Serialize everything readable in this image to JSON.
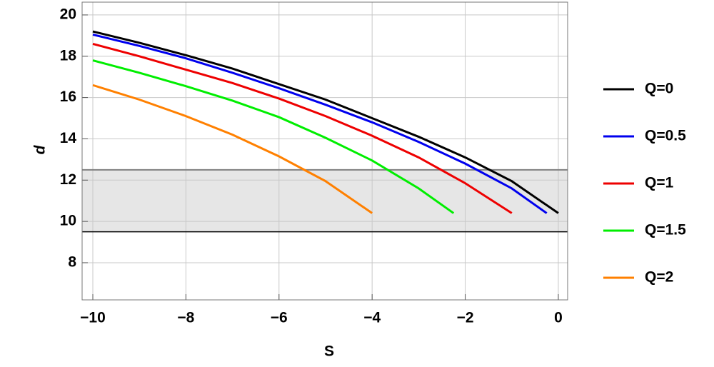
{
  "chart_data": {
    "type": "line",
    "xlabel": "S",
    "ylabel": "d",
    "xlim": [
      -10.23,
      0.2
    ],
    "ylim": [
      6.2,
      20.62
    ],
    "xticks": [
      {
        "value": -10,
        "label": "−10"
      },
      {
        "value": -8,
        "label": "−8"
      },
      {
        "value": -6,
        "label": "−6"
      },
      {
        "value": -4,
        "label": "−4"
      },
      {
        "value": -2,
        "label": "−2"
      },
      0
    ],
    "yticks": [
      8,
      10,
      12,
      14,
      16,
      18,
      20
    ],
    "grid": true,
    "legend": "right",
    "shaded_band": [
      9.5,
      12.5
    ],
    "series": [
      {
        "name": "Q=0",
        "color": "#000000",
        "x": [
          -10,
          -9,
          -8,
          -7,
          -6,
          -5,
          -4,
          -3,
          -2,
          -1,
          0
        ],
        "values": [
          19.2,
          18.65,
          18.05,
          17.4,
          16.65,
          15.9,
          15.0,
          14.1,
          13.1,
          11.95,
          10.4
        ]
      },
      {
        "name": "Q=0.5",
        "color": "#0000ee",
        "x": [
          -10,
          -9,
          -8,
          -7,
          -6,
          -5,
          -4,
          -3,
          -2,
          -1,
          -0.25
        ],
        "values": [
          19.05,
          18.5,
          17.9,
          17.2,
          16.45,
          15.65,
          14.8,
          13.85,
          12.8,
          11.6,
          10.4
        ]
      },
      {
        "name": "Q=1",
        "color": "#ee0000",
        "x": [
          -10,
          -9,
          -8,
          -7,
          -6,
          -5,
          -4,
          -3,
          -2,
          -1
        ],
        "values": [
          18.6,
          18.0,
          17.35,
          16.7,
          15.95,
          15.1,
          14.15,
          13.1,
          11.85,
          10.4
        ]
      },
      {
        "name": "Q=1.5",
        "color": "#00ee00",
        "x": [
          -10,
          -9,
          -8,
          -7,
          -6,
          -5,
          -4,
          -3,
          -2.25
        ],
        "values": [
          17.8,
          17.2,
          16.55,
          15.85,
          15.05,
          14.05,
          12.95,
          11.6,
          10.4
        ]
      },
      {
        "name": "Q=2",
        "color": "#ff8000",
        "x": [
          -10,
          -9,
          -8,
          -7,
          -6,
          -5,
          -4
        ],
        "values": [
          16.6,
          15.9,
          15.1,
          14.2,
          13.15,
          11.95,
          10.4
        ]
      }
    ]
  }
}
